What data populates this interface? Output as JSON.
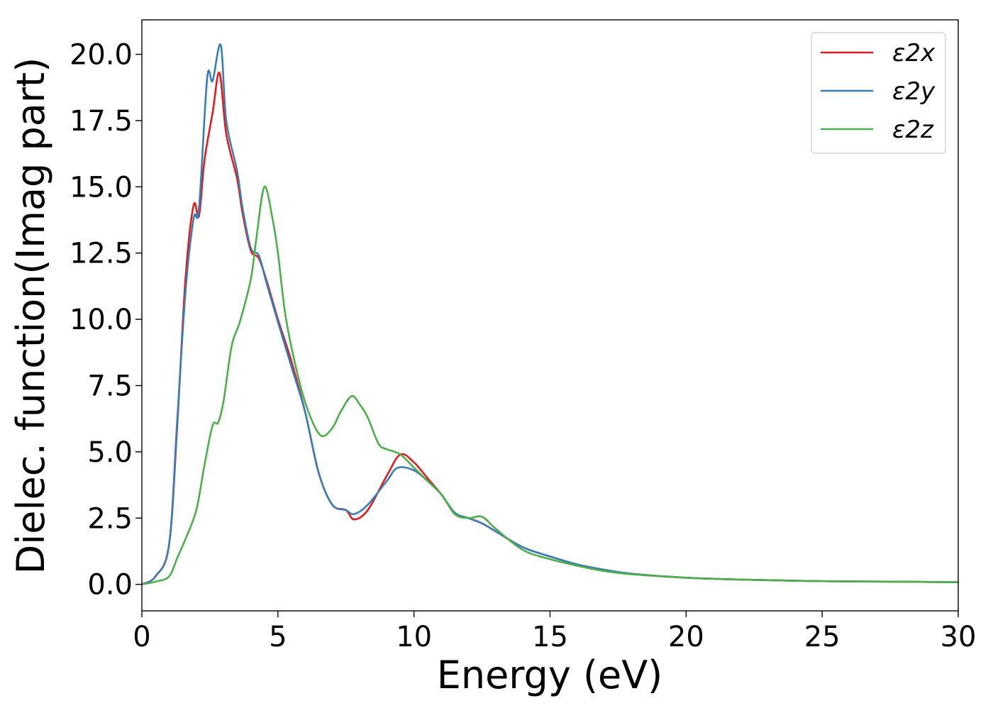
{
  "chart_data": {
    "type": "line",
    "xlabel": "Energy (eV)",
    "ylabel": "Dielec. function(Imag part)",
    "xlim": [
      0,
      30
    ],
    "ylim": [
      -1.0,
      21.3
    ],
    "xticks": [
      0,
      5,
      10,
      15,
      20,
      25,
      30
    ],
    "xtick_labels": [
      "0",
      "5",
      "10",
      "15",
      "20",
      "25",
      "30"
    ],
    "yticks": [
      0.0,
      2.5,
      5.0,
      7.5,
      10.0,
      12.5,
      15.0,
      17.5,
      20.0
    ],
    "ytick_labels": [
      "0.0",
      "2.5",
      "5.0",
      "7.5",
      "10.0",
      "12.5",
      "15.0",
      "17.5",
      "20.0"
    ],
    "grid": false,
    "legend_position": "top-right",
    "series": [
      {
        "name": "ε2x",
        "color": "#e41a1c",
        "x": [
          0,
          0.5,
          1.0,
          1.3,
          1.6,
          1.9,
          2.1,
          2.3,
          2.6,
          2.85,
          3.1,
          3.5,
          3.7,
          4.0,
          4.3,
          4.6,
          5.0,
          5.5,
          6.0,
          6.5,
          7.0,
          7.5,
          7.8,
          8.3,
          9.0,
          9.5,
          10.0,
          10.5,
          11.0,
          11.5,
          12.0,
          12.5,
          13.0,
          14.0,
          15.0,
          16.0,
          17.0,
          18.0,
          20.0,
          22.0,
          25.0,
          28.0,
          30.0
        ],
        "y": [
          0.0,
          0.3,
          1.5,
          6.0,
          11.5,
          14.3,
          13.9,
          16.0,
          17.8,
          19.3,
          17.0,
          15.3,
          14.0,
          12.6,
          12.3,
          11.4,
          10.0,
          8.4,
          6.5,
          4.2,
          3.0,
          2.8,
          2.45,
          2.8,
          4.1,
          4.9,
          4.6,
          4.0,
          3.4,
          2.7,
          2.5,
          2.3,
          2.0,
          1.4,
          1.05,
          0.75,
          0.55,
          0.4,
          0.25,
          0.18,
          0.12,
          0.1,
          0.08
        ]
      },
      {
        "name": "ε2y",
        "color": "#377eb8",
        "x": [
          0,
          0.5,
          1.0,
          1.3,
          1.6,
          1.9,
          2.1,
          2.4,
          2.6,
          2.9,
          3.1,
          3.5,
          3.7,
          4.0,
          4.3,
          4.6,
          5.0,
          5.5,
          6.0,
          6.5,
          7.0,
          7.5,
          7.8,
          8.3,
          9.0,
          9.4,
          10.0,
          10.5,
          11.0,
          11.5,
          12.0,
          12.5,
          13.0,
          14.0,
          15.0,
          16.0,
          17.0,
          18.0,
          20.0,
          22.0,
          25.0,
          28.0,
          30.0
        ],
        "y": [
          0.0,
          0.3,
          1.5,
          6.2,
          11.0,
          13.8,
          14.2,
          19.1,
          19.0,
          20.35,
          17.5,
          15.6,
          14.2,
          12.7,
          12.4,
          11.3,
          9.9,
          8.2,
          6.5,
          4.2,
          3.0,
          2.8,
          2.65,
          3.0,
          3.9,
          4.4,
          4.3,
          3.9,
          3.4,
          2.7,
          2.5,
          2.3,
          2.0,
          1.4,
          1.05,
          0.75,
          0.55,
          0.4,
          0.25,
          0.18,
          0.12,
          0.1,
          0.08
        ]
      },
      {
        "name": "ε2z",
        "color": "#4daf4a",
        "x": [
          0,
          0.5,
          1.0,
          1.3,
          1.6,
          2.0,
          2.3,
          2.6,
          2.8,
          3.0,
          3.3,
          3.6,
          4.0,
          4.2,
          4.5,
          4.8,
          5.0,
          5.3,
          5.8,
          6.2,
          6.6,
          7.0,
          7.3,
          7.7,
          8.0,
          8.3,
          8.7,
          9.0,
          9.5,
          10.0,
          10.5,
          11.0,
          11.5,
          12.0,
          12.5,
          13.0,
          14.0,
          15.0,
          16.0,
          17.0,
          18.0,
          20.0,
          22.0,
          25.0,
          28.0,
          30.0
        ],
        "y": [
          0.0,
          0.1,
          0.3,
          1.0,
          1.7,
          2.8,
          4.5,
          6.0,
          6.1,
          6.9,
          9.0,
          9.9,
          11.5,
          13.0,
          15.0,
          13.8,
          12.5,
          10.0,
          7.6,
          6.3,
          5.6,
          5.9,
          6.5,
          7.1,
          6.8,
          6.3,
          5.3,
          5.1,
          4.9,
          4.4,
          3.9,
          3.4,
          2.65,
          2.5,
          2.55,
          2.1,
          1.3,
          0.95,
          0.7,
          0.5,
          0.38,
          0.25,
          0.18,
          0.12,
          0.1,
          0.08
        ]
      }
    ]
  }
}
